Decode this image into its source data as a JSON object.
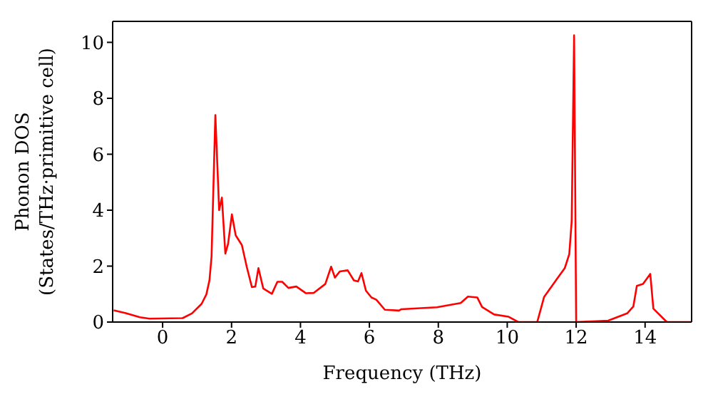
{
  "chart_data": {
    "type": "line",
    "xlabel": "Frequency (THz)",
    "ylabel": "Phonon DOS (States/THz·primitive cell)",
    "x": [
      -1.42,
      -1.07,
      -0.66,
      -0.38,
      0.58,
      0.85,
      1.13,
      1.27,
      1.36,
      1.42,
      1.53,
      1.64,
      1.72,
      1.82,
      1.9,
      2.01,
      2.12,
      2.3,
      2.44,
      2.59,
      2.69,
      2.78,
      2.92,
      3.17,
      3.33,
      3.47,
      3.65,
      3.88,
      4.16,
      4.38,
      4.72,
      4.89,
      5.0,
      5.14,
      5.37,
      5.55,
      5.67,
      5.77,
      5.9,
      6.06,
      6.2,
      6.45,
      6.86,
      6.93,
      7.96,
      8.65,
      8.86,
      9.13,
      9.27,
      9.62,
      10.04,
      10.32,
      10.87,
      11.07,
      11.42,
      11.67,
      11.8,
      11.87,
      11.94,
      12.0,
      12.93,
      13.48,
      13.66,
      13.76,
      13.94,
      14.15,
      14.24,
      14.59,
      14.65,
      15.33
    ],
    "series": [
      {
        "color": "#ff0000",
        "values": [
          0.42,
          0.32,
          0.17,
          0.12,
          0.14,
          0.31,
          0.65,
          0.99,
          1.5,
          2.35,
          7.4,
          4.0,
          4.45,
          2.45,
          2.8,
          3.85,
          3.1,
          2.75,
          1.98,
          1.25,
          1.27,
          1.93,
          1.2,
          1.01,
          1.44,
          1.44,
          1.22,
          1.27,
          1.03,
          1.04,
          1.36,
          1.98,
          1.59,
          1.81,
          1.85,
          1.49,
          1.45,
          1.75,
          1.12,
          0.88,
          0.8,
          0.44,
          0.41,
          0.46,
          0.53,
          0.68,
          0.91,
          0.88,
          0.54,
          0.27,
          0.19,
          0,
          0,
          0.9,
          1.5,
          1.93,
          2.43,
          3.6,
          10.25,
          0,
          0.05,
          0.31,
          0.56,
          1.29,
          1.36,
          1.72,
          0.48,
          0.05,
          0,
          0
        ]
      }
    ],
    "xlim": [
      -1.45,
      15.35
    ],
    "ylim": [
      0,
      10.75
    ],
    "xticks": [
      0,
      2,
      4,
      6,
      8,
      10,
      12,
      14
    ],
    "yticks": [
      0,
      2,
      4,
      6,
      8,
      10
    ],
    "grid": false,
    "legend": false,
    "marker": "none",
    "line_style": "solid"
  }
}
